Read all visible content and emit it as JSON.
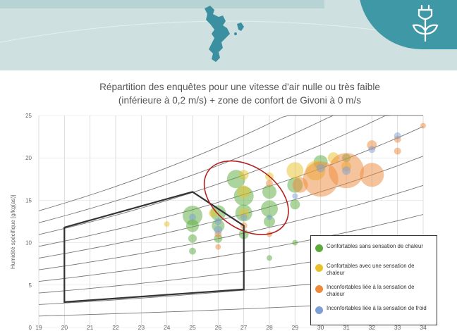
{
  "header": {
    "map_icon": "mayotte-island-map-icon",
    "plant_icon": "plug-plant-icon",
    "accent_color": "#3e98a6"
  },
  "chart_data": {
    "type": "scatter",
    "title_line1": "Répartition des enquêtes pour une vitesse d'air nulle ou très faible",
    "title_line2": "(inférieure à 0,2 m/s) + zone de confort de Givoni à 0 m/s",
    "xlabel": "",
    "ylabel": "Humidité spécifique [g/kg(as)]",
    "xlim": [
      19,
      34
    ],
    "ylim": [
      0,
      25
    ],
    "x_ticks": [
      19,
      20,
      21,
      22,
      23,
      24,
      25,
      26,
      27,
      28,
      29,
      30,
      31,
      32,
      33,
      34
    ],
    "y_ticks": [
      0,
      5,
      10,
      15,
      20,
      25
    ],
    "grid": true,
    "legend_position": "bottom-right",
    "legend": [
      {
        "label": "Confortables sans sensation de chaleur",
        "color": "#5aab3c"
      },
      {
        "label": "Confortables avec une sensation de chaleur",
        "color": "#e8c12a"
      },
      {
        "label": "Inconfortables liée à la sensation de chaleur",
        "color": "#ee8a3a"
      },
      {
        "label": "Inconfortables liée à la sensation de froid",
        "color": "#7c9fd6"
      }
    ],
    "comfort_zone_polygon": [
      [
        20,
        3
      ],
      [
        20,
        11.8
      ],
      [
        25,
        16
      ],
      [
        27,
        12
      ],
      [
        27,
        4.5
      ]
    ],
    "highlight_ellipse_center": [
      27.1,
      15.3
    ],
    "series": [
      {
        "name": "Confortables sans sensation de chaleur",
        "color": "#5aab3c",
        "points": [
          [
            25,
            13.2,
            14
          ],
          [
            25,
            12,
            9
          ],
          [
            25,
            10.5,
            6
          ],
          [
            25,
            9,
            5
          ],
          [
            26,
            13.5,
            11
          ],
          [
            26,
            12,
            9
          ],
          [
            26,
            10.5,
            6
          ],
          [
            26.7,
            17.5,
            13
          ],
          [
            27,
            15.5,
            14
          ],
          [
            27,
            13.5,
            12
          ],
          [
            27,
            11,
            7
          ],
          [
            28,
            16,
            10
          ],
          [
            28,
            14,
            12
          ],
          [
            28,
            12.5,
            8
          ],
          [
            28,
            8.2,
            4
          ],
          [
            29,
            16.8,
            11
          ],
          [
            29,
            14.5,
            7
          ],
          [
            30,
            19.5,
            10
          ],
          [
            31,
            20,
            6
          ],
          [
            29,
            10,
            4
          ]
        ]
      },
      {
        "name": "Confortables avec une sensation de chaleur",
        "color": "#e8c12a",
        "points": [
          [
            24,
            12.2,
            4
          ],
          [
            25.8,
            13.5,
            6
          ],
          [
            27,
            18,
            7
          ],
          [
            27,
            16,
            9
          ],
          [
            27,
            13.5,
            7
          ],
          [
            28,
            17.8,
            6
          ],
          [
            29,
            18.5,
            12
          ],
          [
            29.8,
            18.5,
            14
          ],
          [
            30.5,
            20,
            8
          ],
          [
            31,
            19,
            7
          ]
        ]
      },
      {
        "name": "Inconfortables liée à la sensation de chaleur",
        "color": "#ee8a3a",
        "points": [
          [
            26,
            11,
            5
          ],
          [
            26,
            9.5,
            4
          ],
          [
            27,
            12,
            5
          ],
          [
            28,
            17,
            5
          ],
          [
            28,
            11,
            4
          ],
          [
            30,
            17.5,
            25
          ],
          [
            31,
            18.5,
            25
          ],
          [
            32,
            18,
            17
          ],
          [
            32,
            21.5,
            7
          ],
          [
            33,
            22.2,
            5
          ],
          [
            33,
            20.8,
            5
          ],
          [
            34,
            23.8,
            4
          ],
          [
            29.2,
            16.8,
            11
          ]
        ]
      },
      {
        "name": "Inconfortables liée à la sensation de froid",
        "color": "#7c9fd6",
        "points": [
          [
            26,
            11.5,
            6
          ],
          [
            26,
            12.5,
            5
          ],
          [
            27,
            13,
            5
          ],
          [
            28,
            13,
            4
          ],
          [
            29,
            15.5,
            4
          ],
          [
            30,
            18.8,
            6
          ],
          [
            31,
            18.5,
            6
          ],
          [
            32,
            21,
            5
          ],
          [
            33,
            22.6,
            5
          ],
          [
            25,
            13,
            5
          ]
        ]
      }
    ],
    "psychro_curves_rh_percent": [
      10,
      20,
      30,
      40,
      50,
      60,
      70,
      80,
      90,
      100
    ]
  }
}
